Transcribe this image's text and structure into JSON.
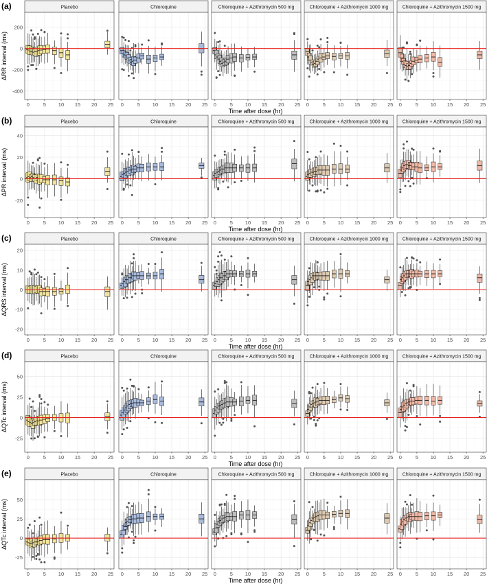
{
  "facets": [
    "Placebo",
    "Chloroquine",
    "Chloroquine + Azithromycin 500 mg",
    "Chloroquine + Azithromycin 1000 mg",
    "Chloroquine + Azithromycin 1500 mg"
  ],
  "colors": {
    "Placebo": "#f1e39a",
    "Chloroquine": "#a9bbdc",
    "Chloroquine + Azithromycin 500 mg": "#bdbdbd",
    "Chloroquine + Azithromycin 1000 mg": "#dcc9b0",
    "Chloroquine + Azithromycin 1500 mg": "#f0b9a6",
    "reference_line": "#e8201c",
    "panel_background": "#ffffff",
    "strip_background": "#f2f2f2",
    "grid": "#e6e6e6"
  },
  "chart_data": [
    {
      "type": "box",
      "panel_label": "(a)",
      "ylabel": "ΔRR interval (ms)",
      "xlabel": "Time after dose (hr)",
      "xlim": [
        -1,
        26
      ],
      "ylim": [
        -480,
        340
      ],
      "yticks": [
        -400,
        -200,
        0,
        200
      ],
      "xticks": [
        0,
        5,
        10,
        15,
        20,
        25
      ],
      "reference_y": 0,
      "times": [
        0,
        0.5,
        1,
        1.5,
        2,
        2.5,
        3,
        3.5,
        4,
        5,
        6,
        8,
        10,
        12,
        24
      ],
      "series": [
        {
          "name": "Placebo",
          "medians": [
            -10,
            -15,
            -25,
            -30,
            -35,
            -30,
            -25,
            -20,
            -15,
            -10,
            -5,
            -20,
            -40,
            -60,
            40
          ]
        },
        {
          "name": "Chloroquine",
          "medians": [
            -20,
            -50,
            -60,
            -70,
            -90,
            -110,
            -130,
            -120,
            -110,
            -90,
            -70,
            -100,
            -90,
            -80,
            0
          ]
        },
        {
          "name": "Chloroquine + Azithromycin 500 mg",
          "medians": [
            -20,
            -60,
            -80,
            -100,
            -120,
            -140,
            -130,
            -120,
            -100,
            -90,
            -80,
            -90,
            -85,
            -80,
            -60
          ]
        },
        {
          "name": "Chloroquine + Azithromycin 1000 mg",
          "medians": [
            -30,
            -80,
            -110,
            -130,
            -150,
            -140,
            -120,
            -100,
            -90,
            -80,
            -70,
            -75,
            -70,
            -70,
            -50
          ]
        },
        {
          "name": "Chloroquine + Azithromycin 1500 mg",
          "medians": [
            -40,
            -90,
            -120,
            -150,
            -160,
            -170,
            -160,
            -140,
            -120,
            -110,
            -100,
            -90,
            -80,
            -130,
            -60
          ]
        }
      ]
    },
    {
      "type": "box",
      "panel_label": "(b)",
      "ylabel": "ΔPR interval (ms)",
      "xlabel": "Time after dose (hr)",
      "xlim": [
        -1,
        26
      ],
      "ylim": [
        -36,
        48
      ],
      "yticks": [
        -20,
        0,
        20,
        40
      ],
      "xticks": [
        0,
        5,
        10,
        15,
        20,
        25
      ],
      "reference_y": 0,
      "times": [
        0,
        0.5,
        1,
        1.5,
        2,
        2.5,
        3,
        3.5,
        4,
        5,
        6,
        8,
        10,
        12,
        24
      ],
      "series": [
        {
          "name": "Placebo",
          "medians": [
            1,
            2,
            1,
            2,
            1,
            0,
            1,
            0,
            0,
            -1,
            -1,
            -1,
            -2,
            -3,
            7
          ]
        },
        {
          "name": "Chloroquine",
          "medians": [
            2,
            4,
            5,
            6,
            7,
            8,
            8,
            9,
            9,
            10,
            10,
            11,
            11,
            11,
            12
          ]
        },
        {
          "name": "Chloroquine + Azithromycin 500 mg",
          "medians": [
            3,
            5,
            6,
            7,
            8,
            9,
            9,
            10,
            10,
            10,
            10,
            10,
            10,
            10,
            14
          ]
        },
        {
          "name": "Chloroquine + Azithromycin 1000 mg",
          "medians": [
            2,
            4,
            5,
            6,
            6,
            7,
            7,
            8,
            8,
            8,
            8,
            9,
            9,
            9,
            10
          ]
        },
        {
          "name": "Chloroquine + Azithromycin 1500 mg",
          "medians": [
            5,
            8,
            10,
            12,
            13,
            13,
            12,
            12,
            11,
            11,
            10,
            10,
            11,
            11,
            12
          ]
        }
      ]
    },
    {
      "type": "box",
      "panel_label": "(c)",
      "ylabel": "ΔQRS interval (ms)",
      "xlabel": "Time after dose (hr)",
      "xlim": [
        -1,
        26
      ],
      "ylim": [
        -23,
        23
      ],
      "yticks": [
        -20,
        -10,
        0,
        10,
        20
      ],
      "xticks": [
        0,
        5,
        10,
        15,
        20,
        25
      ],
      "reference_y": 0,
      "times": [
        0,
        0.5,
        1,
        1.5,
        2,
        2.5,
        3,
        3.5,
        4,
        5,
        6,
        8,
        10,
        12,
        24
      ],
      "series": [
        {
          "name": "Placebo",
          "medians": [
            0,
            0,
            0,
            0,
            0,
            0,
            0,
            0,
            -1,
            -1,
            -1,
            -1,
            -1,
            0,
            -1
          ]
        },
        {
          "name": "Chloroquine",
          "medians": [
            2,
            3,
            4,
            5,
            5,
            6,
            6,
            7,
            7,
            7,
            7,
            7,
            7,
            8,
            5
          ]
        },
        {
          "name": "Chloroquine + Azithromycin 500 mg",
          "medians": [
            2,
            3,
            4,
            5,
            6,
            6,
            7,
            7,
            8,
            8,
            8,
            8,
            8,
            8,
            5
          ]
        },
        {
          "name": "Chloroquine + Azithromycin 1000 mg",
          "medians": [
            2,
            4,
            5,
            6,
            7,
            7,
            7,
            7,
            7,
            7,
            7,
            8,
            8,
            8,
            5
          ]
        },
        {
          "name": "Chloroquine + Azithromycin 1500 mg",
          "medians": [
            2,
            5,
            6,
            7,
            8,
            8,
            8,
            8,
            8,
            8,
            8,
            8,
            8,
            8,
            6
          ]
        }
      ]
    },
    {
      "type": "box",
      "panel_label": "(d)",
      "ylabel": "ΔQTc interval (ms)",
      "xlabel": "Time after dose (hr)",
      "xlim": [
        -1,
        26
      ],
      "ylim": [
        -42,
        68
      ],
      "yticks": [
        -25,
        0,
        25,
        50
      ],
      "xticks": [
        0,
        5,
        10,
        15,
        20,
        25
      ],
      "reference_y": 0,
      "times": [
        0,
        0.5,
        1,
        1.5,
        2,
        2.5,
        3,
        3.5,
        4,
        5,
        6,
        8,
        10,
        12,
        24
      ],
      "series": [
        {
          "name": "Placebo",
          "medians": [
            -3,
            -5,
            -6,
            -7,
            -6,
            -5,
            -4,
            -4,
            -3,
            -2,
            -1,
            0,
            0,
            0,
            1
          ]
        },
        {
          "name": "Chloroquine",
          "medians": [
            3,
            6,
            9,
            12,
            14,
            16,
            17,
            17,
            18,
            18,
            18,
            20,
            22,
            20,
            19
          ]
        },
        {
          "name": "Chloroquine + Azithromycin 500 mg",
          "medians": [
            5,
            9,
            12,
            14,
            15,
            16,
            17,
            18,
            19,
            19,
            19,
            20,
            21,
            21,
            17
          ]
        },
        {
          "name": "Chloroquine + Azithromycin 1000 mg",
          "medians": [
            5,
            10,
            13,
            16,
            17,
            18,
            19,
            20,
            21,
            21,
            21,
            22,
            24,
            23,
            18
          ]
        },
        {
          "name": "Chloroquine + Azithromycin 1500 mg",
          "medians": [
            6,
            10,
            13,
            15,
            17,
            18,
            19,
            20,
            20,
            21,
            21,
            21,
            20,
            21,
            17
          ]
        }
      ]
    },
    {
      "type": "box",
      "panel_label": "(e)",
      "ylabel": "ΔQTc interval (ms)",
      "xlabel": "Time after dose (hr)",
      "xlim": [
        -1,
        26
      ],
      "ylim": [
        -40,
        76
      ],
      "yticks": [
        -25,
        0,
        25,
        50
      ],
      "xticks": [
        0,
        5,
        10,
        15,
        20,
        25
      ],
      "reference_y": 0,
      "times": [
        0,
        0.5,
        1,
        1.5,
        2,
        2.5,
        3,
        3.5,
        4,
        5,
        6,
        8,
        10,
        12,
        24
      ],
      "series": [
        {
          "name": "Placebo",
          "medians": [
            -5,
            -6,
            -7,
            -7,
            -6,
            -5,
            -5,
            -4,
            -3,
            -2,
            -2,
            -1,
            0,
            0,
            0
          ]
        },
        {
          "name": "Chloroquine",
          "medians": [
            5,
            10,
            15,
            20,
            22,
            24,
            24,
            25,
            25,
            26,
            26,
            28,
            28,
            28,
            25
          ]
        },
        {
          "name": "Chloroquine + Azithromycin 500 mg",
          "medians": [
            8,
            13,
            18,
            21,
            23,
            25,
            26,
            27,
            28,
            28,
            28,
            30,
            30,
            30,
            24
          ]
        },
        {
          "name": "Chloroquine + Azithromycin 1000 mg",
          "medians": [
            10,
            16,
            20,
            23,
            26,
            27,
            28,
            29,
            30,
            30,
            30,
            31,
            32,
            32,
            26
          ]
        },
        {
          "name": "Chloroquine + Azithromycin 1500 mg",
          "medians": [
            12,
            18,
            21,
            24,
            26,
            27,
            28,
            28,
            28,
            28,
            28,
            29,
            29,
            30,
            24
          ]
        }
      ]
    }
  ]
}
